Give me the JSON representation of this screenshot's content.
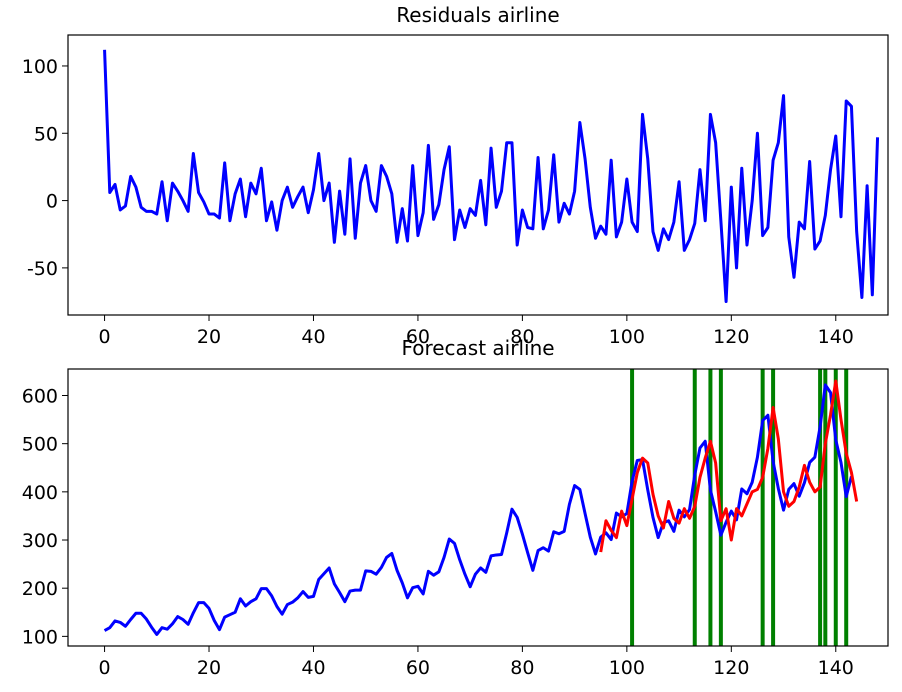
{
  "chart_data": [
    {
      "type": "line",
      "title": "Residuals airline",
      "xlim": [
        -7,
        150
      ],
      "ylim": [
        -85,
        123
      ],
      "xticks": [
        0,
        20,
        40,
        60,
        80,
        100,
        120,
        140
      ],
      "yticks": [
        -50,
        0,
        50,
        100
      ],
      "grid": false,
      "series": [
        {
          "color": "#0000ff",
          "x_start": 0,
          "values": [
            112,
            6,
            12,
            -7,
            -4,
            18,
            10,
            -5,
            -8,
            -8,
            -10,
            14,
            -15,
            13,
            7,
            0,
            -8,
            35,
            6,
            -1,
            -10,
            -10,
            -13,
            28,
            -15,
            5,
            16,
            -12,
            13,
            5,
            24,
            -15,
            -1,
            -22,
            0,
            10,
            -5,
            3,
            10,
            -9,
            8,
            35,
            0,
            13,
            -31,
            7,
            -25,
            31,
            -28,
            13,
            26,
            0,
            -8,
            26,
            18,
            5,
            -31,
            -6,
            -30,
            26,
            -26,
            -9,
            41,
            -14,
            -3,
            23,
            40,
            -29,
            -7,
            -20,
            -6,
            -11,
            15,
            -18,
            39,
            -5,
            7,
            43,
            43,
            -33,
            -7,
            -20,
            -21,
            32,
            -21,
            -7,
            34,
            -16,
            -2,
            -10,
            7,
            58,
            31,
            -5,
            -28,
            -19,
            -25,
            30,
            -27,
            -16,
            16,
            -16,
            -23,
            64,
            31,
            -23,
            -37,
            -21,
            -29,
            -16,
            14,
            -37,
            -29,
            -17,
            23,
            -15,
            64,
            43,
            -15,
            -75,
            10,
            -50,
            24,
            -33,
            0,
            50,
            -26,
            -20,
            30,
            43,
            78,
            -27,
            -57,
            -16,
            -21,
            29,
            -36,
            -30,
            -11,
            23,
            48,
            -12,
            74,
            70,
            -23,
            -72,
            11,
            -70,
            47
          ]
        }
      ]
    },
    {
      "type": "line",
      "title": "Forecast airline",
      "xlim": [
        -7,
        150
      ],
      "ylim": [
        80,
        655
      ],
      "xticks": [
        0,
        20,
        40,
        60,
        80,
        100,
        120,
        140
      ],
      "yticks": [
        100,
        200,
        300,
        400,
        500,
        600
      ],
      "grid": false,
      "series": [
        {
          "color": "#0000ff",
          "x_start": 0,
          "values": [
            112,
            118,
            132,
            129,
            121,
            135,
            148,
            148,
            136,
            119,
            104,
            118,
            115,
            126,
            141,
            135,
            125,
            149,
            170,
            170,
            158,
            133,
            114,
            140,
            145,
            150,
            178,
            163,
            172,
            178,
            199,
            199,
            184,
            162,
            146,
            166,
            171,
            180,
            193,
            181,
            183,
            218,
            230,
            242,
            209,
            191,
            172,
            194,
            196,
            196,
            236,
            235,
            229,
            243,
            264,
            272,
            237,
            211,
            180,
            201,
            204,
            188,
            235,
            227,
            234,
            264,
            302,
            293,
            259,
            229,
            203,
            229,
            242,
            233,
            267,
            269,
            270,
            315,
            364,
            347,
            312,
            274,
            237,
            278,
            284,
            277,
            317,
            313,
            318,
            374,
            413,
            405,
            355,
            306,
            271,
            306,
            315,
            301,
            356,
            348,
            355,
            422,
            465,
            467,
            404,
            347,
            305,
            336,
            340,
            318,
            362,
            348,
            363,
            435,
            491,
            505,
            404,
            359,
            310,
            337,
            360,
            342,
            406,
            396,
            420,
            472,
            548,
            559,
            463,
            407,
            362,
            405,
            417,
            391,
            419,
            461,
            472,
            535,
            622,
            606,
            508,
            461,
            390,
            432
          ]
        },
        {
          "color": "#ff0000",
          "x_start": 95,
          "values": [
            275,
            340,
            320,
            305,
            360,
            330,
            385,
            440,
            470,
            460,
            395,
            350,
            325,
            380,
            345,
            335,
            365,
            345,
            370,
            430,
            470,
            505,
            460,
            340,
            365,
            300,
            365,
            350,
            375,
            400,
            405,
            430,
            490,
            575,
            510,
            400,
            370,
            380,
            410,
            455,
            420,
            400,
            410,
            500,
            560,
            630,
            550,
            480,
            440,
            380
          ]
        }
      ],
      "vlines": {
        "color": "#008000",
        "x": [
          101,
          113,
          116,
          118,
          126,
          128,
          137,
          138,
          140,
          142
        ]
      }
    }
  ]
}
